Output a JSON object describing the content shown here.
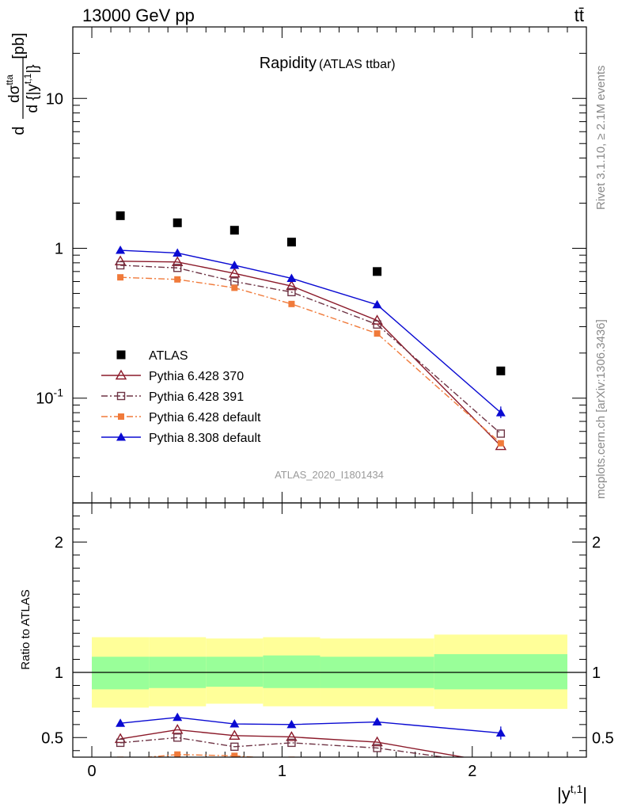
{
  "header": {
    "left": "13000 GeV pp",
    "right": "tt̄"
  },
  "side": {
    "rivet": "Rivet 3.1.10, ≥ 2.1M events",
    "mcplots": "mcplots.cern.ch [arXiv:1306.3436]"
  },
  "chart_data": [
    {
      "type": "scatter",
      "title": "Rapidity",
      "subtitle": "(ATLAS ttbar)",
      "watermark": "ATLAS_2020_I1801434",
      "ylabel": "d dσ^{ttbar} / d{|y^{t,1}|} [pb]",
      "yscale": "log",
      "ylim": [
        0.02,
        30
      ],
      "xlim": [
        -0.1,
        2.6
      ],
      "yticks": [
        {
          "v": 0.1,
          "l": "10^-1"
        },
        {
          "v": 1,
          "l": "1"
        },
        {
          "v": 10,
          "l": "10"
        }
      ],
      "legend_position": "bottom-left",
      "x": [
        0.15,
        0.45,
        0.75,
        1.05,
        1.5,
        2.15
      ],
      "series": [
        {
          "name": "ATLAS",
          "color": "#000000",
          "marker": "square",
          "line": "none",
          "values": [
            1.65,
            1.48,
            1.32,
            1.1,
            0.7,
            0.152
          ]
        },
        {
          "name": "Pythia 6.428 370",
          "color": "#8b1a2a",
          "marker": "triangle-open",
          "line": "solid",
          "values": [
            0.82,
            0.81,
            0.68,
            0.56,
            0.33,
            0.048
          ]
        },
        {
          "name": "Pythia 6.428 391",
          "color": "#6e3445",
          "marker": "square-open",
          "line": "dashdot",
          "values": [
            0.77,
            0.74,
            0.6,
            0.51,
            0.31,
            0.058
          ]
        },
        {
          "name": "Pythia 6.428 default",
          "color": "#f07a3a",
          "marker": "square-small",
          "line": "dashdot",
          "values": [
            0.64,
            0.62,
            0.545,
            0.425,
            0.27,
            0.05
          ]
        },
        {
          "name": "Pythia 8.308 default",
          "color": "#0a0ad2",
          "marker": "triangle",
          "line": "solid",
          "values": [
            0.97,
            0.93,
            0.77,
            0.63,
            0.42,
            0.08
          ]
        }
      ]
    },
    {
      "type": "line",
      "ylabel": "Ratio to ATLAS",
      "xlabel": "|y^{t,1}|",
      "ylim": [
        0.35,
        2.3
      ],
      "xlim": [
        -0.1,
        2.6
      ],
      "xticks": [
        0,
        1,
        2
      ],
      "yticks": [
        {
          "v": 0.5,
          "l": "0.5"
        },
        {
          "v": 1,
          "l": "1"
        },
        {
          "v": 2,
          "l": "2"
        }
      ],
      "bins": [
        {
          "lo": 0.0,
          "hi": 0.3,
          "inner": [
            0.87,
            1.12
          ],
          "outer": [
            0.73,
            1.27
          ]
        },
        {
          "lo": 0.3,
          "hi": 0.6,
          "inner": [
            0.88,
            1.12
          ],
          "outer": [
            0.74,
            1.27
          ]
        },
        {
          "lo": 0.6,
          "hi": 0.9,
          "inner": [
            0.89,
            1.12
          ],
          "outer": [
            0.76,
            1.26
          ]
        },
        {
          "lo": 0.9,
          "hi": 1.2,
          "inner": [
            0.88,
            1.13
          ],
          "outer": [
            0.74,
            1.27
          ]
        },
        {
          "lo": 1.2,
          "hi": 1.8,
          "inner": [
            0.88,
            1.12
          ],
          "outer": [
            0.74,
            1.26
          ]
        },
        {
          "lo": 1.8,
          "hi": 2.5,
          "inner": [
            0.87,
            1.14
          ],
          "outer": [
            0.72,
            1.29
          ]
        }
      ],
      "x": [
        0.15,
        0.45,
        0.75,
        1.05,
        1.5,
        2.15
      ],
      "series": [
        {
          "name": "Pythia 6.428 370",
          "color": "#8b1a2a",
          "marker": "triangle-open",
          "line": "solid",
          "values": [
            0.49,
            0.56,
            0.515,
            0.505,
            0.465,
            0.3
          ]
        },
        {
          "name": "Pythia 6.428 391",
          "color": "#6e3445",
          "marker": "square-open",
          "line": "dashdot",
          "values": [
            0.46,
            0.5,
            0.43,
            0.46,
            0.42,
            0.29
          ]
        },
        {
          "name": "Pythia 6.428 default",
          "color": "#f07a3a",
          "marker": "square-small",
          "line": "dashdot",
          "values": [
            0.33,
            0.37,
            0.36,
            0.33,
            0.3,
            0.28
          ]
        },
        {
          "name": "Pythia 8.308 default",
          "color": "#0a0ad2",
          "marker": "triangle",
          "line": "solid",
          "values": [
            0.61,
            0.655,
            0.605,
            0.6,
            0.62,
            0.535
          ]
        }
      ]
    }
  ]
}
